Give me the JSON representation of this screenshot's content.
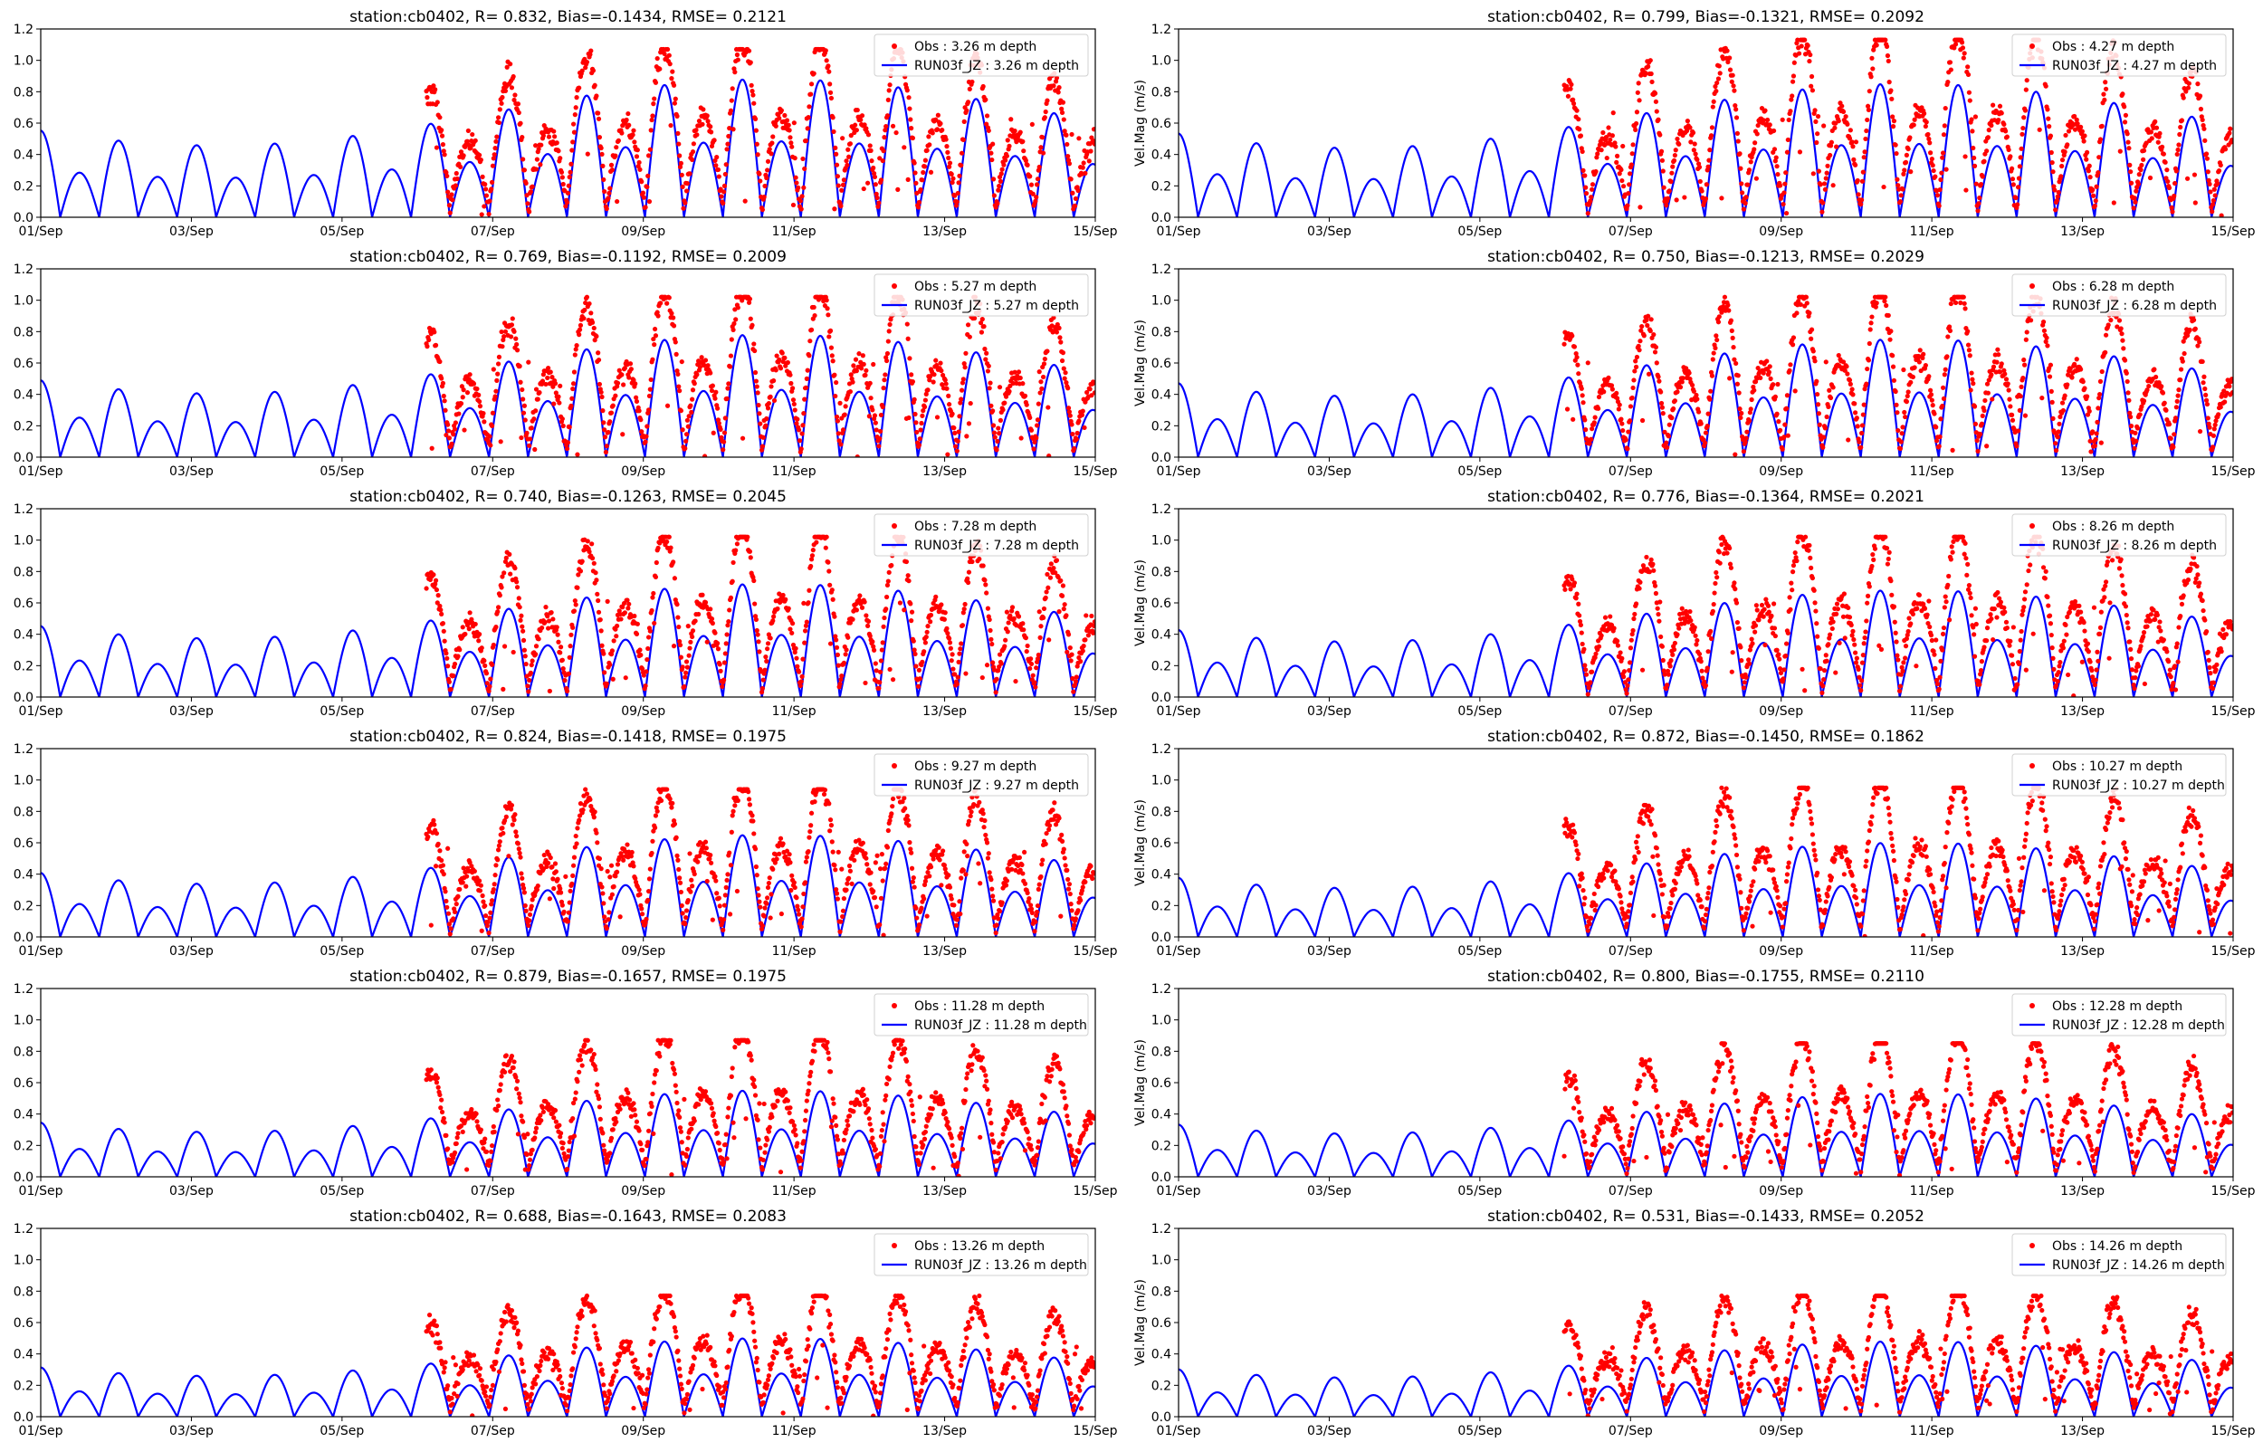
{
  "figure": {
    "x_tick_labels": [
      "01/Sep",
      "03/Sep",
      "05/Sep",
      "07/Sep",
      "09/Sep",
      "11/Sep",
      "13/Sep",
      "15/Sep"
    ],
    "y_tick_labels": [
      "0.0",
      "0.2",
      "0.4",
      "0.6",
      "0.8",
      "1.0",
      "1.2"
    ],
    "ylabel_right": "Vel.Mag (m/s)",
    "obs_color": "#ff0000",
    "model_color": "#0000ff"
  },
  "chart_data": [
    {
      "type": "line",
      "title": "station:cb0402, R= 0.832, Bias=-0.1434, RMSE= 0.2121",
      "xlabel": "",
      "ylabel": "",
      "xlim": [
        "01/Sep",
        "15/Sep"
      ],
      "ylim": [
        0,
        1.2
      ],
      "legend": "top-right",
      "series": [
        {
          "name": "Obs : 3.26 m depth",
          "kind": "scatter",
          "color": "#ff0000",
          "start": "06/Sep",
          "end": "15/Sep",
          "peak_max": 1.07,
          "trough_min": 0.0
        },
        {
          "name": "RUN03f_JZ : 3.26 m depth",
          "kind": "line",
          "color": "#0000ff",
          "start": "01/Sep",
          "end": "15/Sep",
          "peak_max": 0.88,
          "trough_min": 0.0
        }
      ]
    },
    {
      "type": "line",
      "title": "station:cb0402, R= 0.799, Bias=-0.1321, RMSE= 0.2092",
      "xlabel": "",
      "ylabel": "Vel.Mag (m/s)",
      "xlim": [
        "01/Sep",
        "15/Sep"
      ],
      "ylim": [
        0,
        1.2
      ],
      "legend": "top-right",
      "series": [
        {
          "name": "Obs : 4.27 m depth",
          "kind": "scatter",
          "color": "#ff0000",
          "start": "06/Sep",
          "end": "15/Sep",
          "peak_max": 1.13,
          "trough_min": 0.0
        },
        {
          "name": "RUN03f_JZ : 4.27 m depth",
          "kind": "line",
          "color": "#0000ff",
          "start": "01/Sep",
          "end": "15/Sep",
          "peak_max": 0.85,
          "trough_min": 0.0
        }
      ]
    },
    {
      "type": "line",
      "title": "station:cb0402, R= 0.769, Bias=-0.1192, RMSE= 0.2009",
      "xlabel": "",
      "ylabel": "",
      "xlim": [
        "01/Sep",
        "15/Sep"
      ],
      "ylim": [
        0,
        1.2
      ],
      "legend": "top-right",
      "series": [
        {
          "name": "Obs : 5.27 m depth",
          "kind": "scatter",
          "color": "#ff0000",
          "start": "06/Sep",
          "end": "15/Sep",
          "peak_max": 1.02,
          "trough_min": 0.0
        },
        {
          "name": "RUN03f_JZ : 5.27 m depth",
          "kind": "line",
          "color": "#0000ff",
          "start": "01/Sep",
          "end": "15/Sep",
          "peak_max": 0.78,
          "trough_min": 0.0
        }
      ]
    },
    {
      "type": "line",
      "title": "station:cb0402, R= 0.750, Bias=-0.1213, RMSE= 0.2029",
      "xlabel": "",
      "ylabel": "Vel.Mag (m/s)",
      "xlim": [
        "01/Sep",
        "15/Sep"
      ],
      "ylim": [
        0,
        1.2
      ],
      "legend": "top-right",
      "series": [
        {
          "name": "Obs : 6.28 m depth",
          "kind": "scatter",
          "color": "#ff0000",
          "start": "06/Sep",
          "end": "15/Sep",
          "peak_max": 1.02,
          "trough_min": 0.0
        },
        {
          "name": "RUN03f_JZ : 6.28 m depth",
          "kind": "line",
          "color": "#0000ff",
          "start": "01/Sep",
          "end": "15/Sep",
          "peak_max": 0.75,
          "trough_min": 0.0
        }
      ]
    },
    {
      "type": "line",
      "title": "station:cb0402, R= 0.740, Bias=-0.1263, RMSE= 0.2045",
      "xlabel": "",
      "ylabel": "",
      "xlim": [
        "01/Sep",
        "15/Sep"
      ],
      "ylim": [
        0,
        1.2
      ],
      "legend": "top-right",
      "series": [
        {
          "name": "Obs : 7.28 m depth",
          "kind": "scatter",
          "color": "#ff0000",
          "start": "06/Sep",
          "end": "15/Sep",
          "peak_max": 1.02,
          "trough_min": 0.0
        },
        {
          "name": "RUN03f_JZ : 7.28 m depth",
          "kind": "line",
          "color": "#0000ff",
          "start": "01/Sep",
          "end": "15/Sep",
          "peak_max": 0.72,
          "trough_min": 0.0
        }
      ]
    },
    {
      "type": "line",
      "title": "station:cb0402, R= 0.776, Bias=-0.1364, RMSE= 0.2021",
      "xlabel": "",
      "ylabel": "Vel.Mag (m/s)",
      "xlim": [
        "01/Sep",
        "15/Sep"
      ],
      "ylim": [
        0,
        1.2
      ],
      "legend": "top-right",
      "series": [
        {
          "name": "Obs : 8.26 m depth",
          "kind": "scatter",
          "color": "#ff0000",
          "start": "06/Sep",
          "end": "15/Sep",
          "peak_max": 1.02,
          "trough_min": 0.0
        },
        {
          "name": "RUN03f_JZ : 8.26 m depth",
          "kind": "line",
          "color": "#0000ff",
          "start": "01/Sep",
          "end": "15/Sep",
          "peak_max": 0.68,
          "trough_min": 0.0
        }
      ]
    },
    {
      "type": "line",
      "title": "station:cb0402, R= 0.824, Bias=-0.1418, RMSE= 0.1975",
      "xlabel": "",
      "ylabel": "",
      "xlim": [
        "01/Sep",
        "15/Sep"
      ],
      "ylim": [
        0,
        1.2
      ],
      "legend": "top-right",
      "series": [
        {
          "name": "Obs : 9.27 m depth",
          "kind": "scatter",
          "color": "#ff0000",
          "start": "06/Sep",
          "end": "15/Sep",
          "peak_max": 0.94,
          "trough_min": 0.0
        },
        {
          "name": "RUN03f_JZ : 9.27 m depth",
          "kind": "line",
          "color": "#0000ff",
          "start": "01/Sep",
          "end": "15/Sep",
          "peak_max": 0.65,
          "trough_min": 0.0
        }
      ]
    },
    {
      "type": "line",
      "title": "station:cb0402, R= 0.872, Bias=-0.1450, RMSE= 0.1862",
      "xlabel": "",
      "ylabel": "Vel.Mag (m/s)",
      "xlim": [
        "01/Sep",
        "15/Sep"
      ],
      "ylim": [
        0,
        1.2
      ],
      "legend": "top-right",
      "series": [
        {
          "name": "Obs : 10.27 m depth",
          "kind": "scatter",
          "color": "#ff0000",
          "start": "06/Sep",
          "end": "15/Sep",
          "peak_max": 0.95,
          "trough_min": 0.0
        },
        {
          "name": "RUN03f_JZ : 10.27 m depth",
          "kind": "line",
          "color": "#0000ff",
          "start": "01/Sep",
          "end": "15/Sep",
          "peak_max": 0.6,
          "trough_min": 0.0
        }
      ]
    },
    {
      "type": "line",
      "title": "station:cb0402, R= 0.879, Bias=-0.1657, RMSE= 0.1975",
      "xlabel": "",
      "ylabel": "",
      "xlim": [
        "01/Sep",
        "15/Sep"
      ],
      "ylim": [
        0,
        1.2
      ],
      "legend": "top-right",
      "series": [
        {
          "name": "Obs : 11.28 m depth",
          "kind": "scatter",
          "color": "#ff0000",
          "start": "06/Sep",
          "end": "15/Sep",
          "peak_max": 0.87,
          "trough_min": 0.0
        },
        {
          "name": "RUN03f_JZ : 11.28 m depth",
          "kind": "line",
          "color": "#0000ff",
          "start": "01/Sep",
          "end": "15/Sep",
          "peak_max": 0.55,
          "trough_min": 0.0
        }
      ]
    },
    {
      "type": "line",
      "title": "station:cb0402, R= 0.800, Bias=-0.1755, RMSE= 0.2110",
      "xlabel": "",
      "ylabel": "Vel.Mag (m/s)",
      "xlim": [
        "01/Sep",
        "15/Sep"
      ],
      "ylim": [
        0,
        1.2
      ],
      "legend": "top-right",
      "series": [
        {
          "name": "Obs : 12.28 m depth",
          "kind": "scatter",
          "color": "#ff0000",
          "start": "06/Sep",
          "end": "15/Sep",
          "peak_max": 0.85,
          "trough_min": 0.0
        },
        {
          "name": "RUN03f_JZ : 12.28 m depth",
          "kind": "line",
          "color": "#0000ff",
          "start": "01/Sep",
          "end": "15/Sep",
          "peak_max": 0.53,
          "trough_min": 0.0
        }
      ]
    },
    {
      "type": "line",
      "title": "station:cb0402, R= 0.688, Bias=-0.1643, RMSE= 0.2083",
      "xlabel": "",
      "ylabel": "",
      "xlim": [
        "01/Sep",
        "15/Sep"
      ],
      "ylim": [
        0,
        1.2
      ],
      "legend": "top-right",
      "series": [
        {
          "name": "Obs : 13.26 m depth",
          "kind": "scatter",
          "color": "#ff0000",
          "start": "06/Sep",
          "end": "15/Sep",
          "peak_max": 0.77,
          "trough_min": 0.0
        },
        {
          "name": "RUN03f_JZ : 13.26 m depth",
          "kind": "line",
          "color": "#0000ff",
          "start": "01/Sep",
          "end": "15/Sep",
          "peak_max": 0.5,
          "trough_min": 0.0
        }
      ]
    },
    {
      "type": "line",
      "title": "station:cb0402, R= 0.531, Bias=-0.1433, RMSE= 0.2052",
      "xlabel": "",
      "ylabel": "Vel.Mag (m/s)",
      "xlim": [
        "01/Sep",
        "15/Sep"
      ],
      "ylim": [
        0,
        1.2
      ],
      "legend": "top-right",
      "series": [
        {
          "name": "Obs : 14.26 m depth",
          "kind": "scatter",
          "color": "#ff0000",
          "start": "06/Sep",
          "end": "15/Sep",
          "peak_max": 0.77,
          "trough_min": 0.0
        },
        {
          "name": "RUN03f_JZ : 14.26 m depth",
          "kind": "line",
          "color": "#0000ff",
          "start": "01/Sep",
          "end": "15/Sep",
          "peak_max": 0.48,
          "trough_min": 0.0
        }
      ]
    }
  ]
}
